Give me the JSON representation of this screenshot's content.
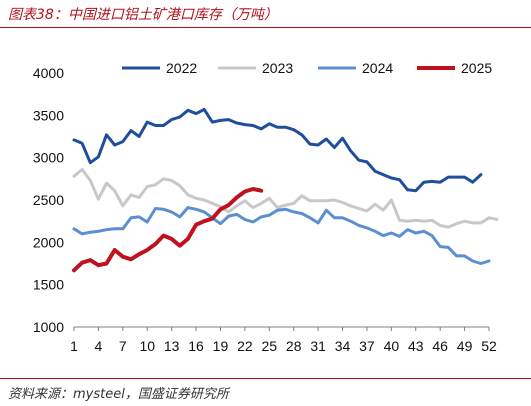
{
  "header": {
    "title": "图表38：中国进口铝土矿港口库存（万吨）"
  },
  "footer": {
    "source": "资料来源：mysteel，国盛证券研究所"
  },
  "chart_data": {
    "type": "line",
    "title": "图表38：中国进口铝土矿港口库存（万吨）",
    "xlabel": "",
    "ylabel": "",
    "xlim": [
      1,
      52
    ],
    "ylim": [
      1000,
      4000
    ],
    "x_ticks": [
      1,
      4,
      7,
      10,
      13,
      16,
      19,
      22,
      25,
      28,
      31,
      34,
      37,
      40,
      43,
      46,
      49,
      52
    ],
    "y_ticks": [
      1000,
      1500,
      2000,
      2500,
      3000,
      3500,
      4000
    ],
    "grid": false,
    "legend_position": "top",
    "series": [
      {
        "name": "2022",
        "color": "#1f4e9c",
        "values": [
          3210,
          3170,
          2940,
          3010,
          3270,
          3150,
          3190,
          3320,
          3250,
          3420,
          3380,
          3380,
          3450,
          3480,
          3560,
          3520,
          3570,
          3420,
          3440,
          3450,
          3410,
          3390,
          3380,
          3340,
          3400,
          3360,
          3360,
          3330,
          3270,
          3160,
          3150,
          3220,
          3120,
          3230,
          3080,
          2970,
          2950,
          2840,
          2800,
          2760,
          2740,
          2620,
          2610,
          2710,
          2720,
          2710,
          2770,
          2770,
          2770,
          2710,
          2800
        ]
      },
      {
        "name": "2023",
        "color": "#c8c8c8",
        "values": [
          2780,
          2860,
          2730,
          2510,
          2700,
          2610,
          2430,
          2560,
          2530,
          2660,
          2680,
          2750,
          2730,
          2670,
          2560,
          2520,
          2500,
          2460,
          2420,
          2360,
          2430,
          2490,
          2410,
          2460,
          2520,
          2410,
          2440,
          2460,
          2550,
          2490,
          2490,
          2490,
          2500,
          2470,
          2430,
          2400,
          2370,
          2450,
          2380,
          2500,
          2260,
          2250,
          2260,
          2250,
          2260,
          2200,
          2180,
          2220,
          2250,
          2230,
          2230,
          2290,
          2270
        ]
      },
      {
        "name": "2024",
        "color": "#5b8fd1",
        "values": [
          2160,
          2100,
          2120,
          2130,
          2150,
          2160,
          2160,
          2290,
          2300,
          2240,
          2400,
          2390,
          2360,
          2300,
          2410,
          2390,
          2360,
          2290,
          2220,
          2310,
          2330,
          2270,
          2240,
          2300,
          2320,
          2380,
          2390,
          2360,
          2340,
          2290,
          2230,
          2380,
          2290,
          2290,
          2250,
          2200,
          2170,
          2130,
          2080,
          2110,
          2070,
          2150,
          2110,
          2130,
          2080,
          1950,
          1940,
          1840,
          1840,
          1780,
          1750,
          1780
        ]
      },
      {
        "name": "2025",
        "color": "#c0121e",
        "values": [
          1670,
          1760,
          1790,
          1730,
          1750,
          1910,
          1830,
          1800,
          1860,
          1910,
          1980,
          2080,
          2040,
          1960,
          2040,
          2210,
          2250,
          2280,
          2390,
          2440,
          2530,
          2600,
          2630,
          2610
        ]
      }
    ]
  }
}
